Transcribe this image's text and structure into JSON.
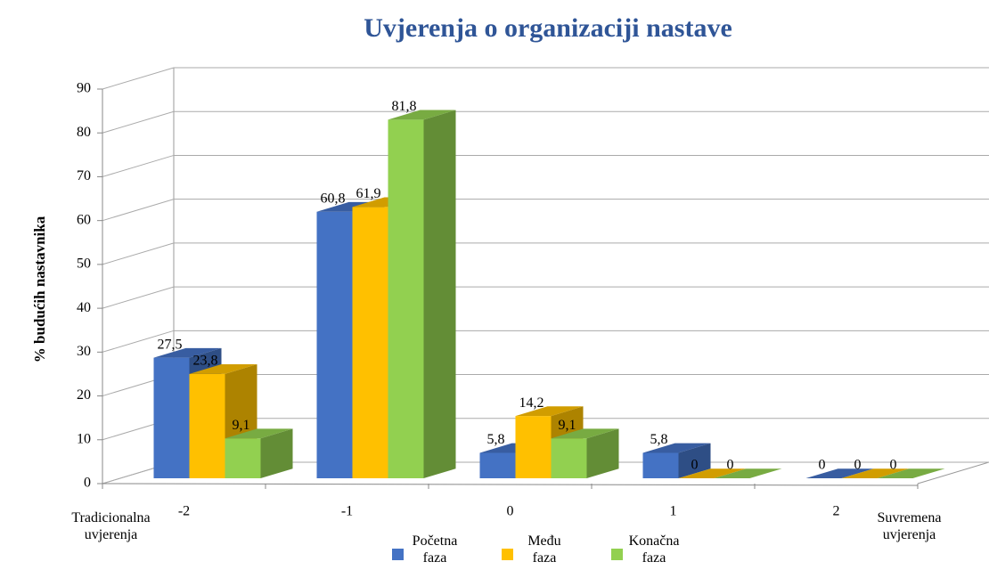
{
  "chart_data": {
    "type": "bar3d",
    "title": "Uvjerenja o organizaciji nastave",
    "y_label": "% budućih nastavnika",
    "annotations": [
      "Tradicionalna uvjerenja",
      "Suvremena uvjerenja"
    ],
    "categories": [
      "-2",
      "-1",
      "0",
      "1",
      "2"
    ],
    "series": [
      {
        "name": "Početna faza",
        "color": "#4472c4",
        "values": [
          27.5,
          60.8,
          5.8,
          5.8,
          0
        ],
        "value_labels": [
          "27,5",
          "60,8",
          "5,8",
          "5,8",
          "0"
        ]
      },
      {
        "name": "Među faza",
        "color": "#ffc000",
        "values": [
          23.8,
          61.9,
          14.2,
          0,
          0
        ],
        "value_labels": [
          "23,8",
          "61,9",
          "14,2",
          "0",
          "0"
        ]
      },
      {
        "name": "Konačna faza",
        "color": "#92d050",
        "values": [
          9.1,
          81.8,
          9.1,
          0,
          0
        ],
        "value_labels": [
          "9,1",
          "81,8",
          "9,1",
          "0",
          "0"
        ]
      }
    ],
    "ylim": [
      0,
      90
    ],
    "yticks": [
      0,
      10,
      20,
      30,
      40,
      50,
      60,
      70,
      80,
      90
    ],
    "grid": true,
    "legend": "bottom"
  }
}
